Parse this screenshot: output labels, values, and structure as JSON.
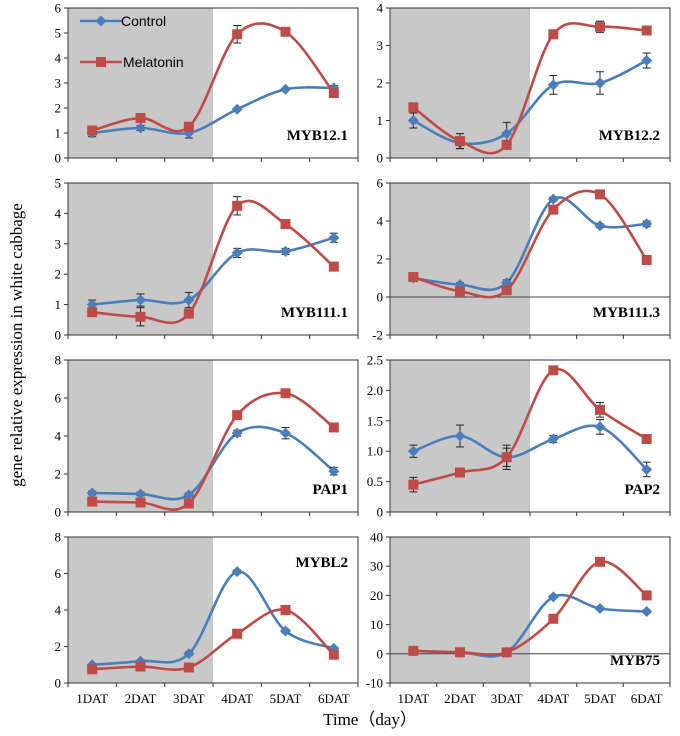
{
  "figure": {
    "ylabel": "gene relative expression in white cabbage",
    "xlabel": "Time（day）",
    "x_categories": [
      "1DAT",
      "2DAT",
      "3DAT",
      "4DAT",
      "5DAT",
      "6DAT"
    ],
    "shaded_region": "1DAT-3DAT",
    "colors": {
      "control": "#4a7ebb",
      "melatonin": "#be4b48",
      "shade": "#c8c8c8"
    }
  },
  "legend": {
    "control": "Control",
    "melatonin": "Melatonin"
  },
  "chart_data": [
    {
      "type": "line",
      "title": "MYB12.1",
      "ylim": [
        0,
        6
      ],
      "yticks": [
        "0",
        "1",
        "2",
        "3",
        "4",
        "5",
        "6"
      ],
      "categories": [
        "1DAT",
        "2DAT",
        "3DAT",
        "4DAT",
        "5DAT",
        "6DAT"
      ],
      "series": [
        {
          "name": "Control",
          "values": [
            1.0,
            1.2,
            1.0,
            1.95,
            2.75,
            2.8
          ],
          "errors": [
            0.15,
            0.1,
            0.2,
            0.05,
            0.05,
            0.1
          ]
        },
        {
          "name": "Melatonin",
          "values": [
            1.1,
            1.6,
            1.25,
            4.95,
            5.05,
            2.6
          ],
          "errors": [
            0.1,
            0.1,
            0.1,
            0.35,
            0.05,
            0.1
          ]
        }
      ]
    },
    {
      "type": "line",
      "title": "MYB12.2",
      "ylim": [
        0,
        4
      ],
      "yticks": [
        "0",
        "1",
        "2",
        "3",
        "4"
      ],
      "categories": [
        "1DAT",
        "2DAT",
        "3DAT",
        "4DAT",
        "5DAT",
        "6DAT"
      ],
      "series": [
        {
          "name": "Control",
          "values": [
            1.0,
            0.4,
            0.65,
            1.95,
            2.0,
            2.6
          ],
          "errors": [
            0.2,
            0.15,
            0.3,
            0.25,
            0.3,
            0.2
          ]
        },
        {
          "name": "Melatonin",
          "values": [
            1.35,
            0.45,
            0.35,
            3.3,
            3.5,
            3.4
          ],
          "errors": [
            0.05,
            0.2,
            0.05,
            0.05,
            0.15,
            0.05
          ]
        }
      ]
    },
    {
      "type": "line",
      "title": "MYB111.1",
      "ylim": [
        0,
        5
      ],
      "yticks": [
        "0",
        "1",
        "2",
        "3",
        "4",
        "5"
      ],
      "categories": [
        "1DAT",
        "2DAT",
        "3DAT",
        "4DAT",
        "5DAT",
        "6DAT"
      ],
      "series": [
        {
          "name": "Control",
          "values": [
            1.0,
            1.15,
            1.15,
            2.7,
            2.75,
            3.2
          ],
          "errors": [
            0.15,
            0.2,
            0.25,
            0.15,
            0.1,
            0.15
          ]
        },
        {
          "name": "Melatonin",
          "values": [
            0.75,
            0.6,
            0.7,
            4.25,
            3.65,
            2.25
          ],
          "errors": [
            0.1,
            0.3,
            0.1,
            0.3,
            0.05,
            0.05
          ]
        }
      ]
    },
    {
      "type": "line",
      "title": "MYB111.3",
      "ylim": [
        -2,
        6
      ],
      "yticks": [
        "-2",
        "0",
        "2",
        "4",
        "6"
      ],
      "categories": [
        "1DAT",
        "2DAT",
        "3DAT",
        "4DAT",
        "5DAT",
        "6DAT"
      ],
      "series": [
        {
          "name": "Control",
          "values": [
            1.0,
            0.65,
            0.75,
            5.15,
            3.75,
            3.85
          ],
          "errors": [
            0.1,
            0.1,
            0.15,
            0.1,
            0.1,
            0.15
          ]
        },
        {
          "name": "Melatonin",
          "values": [
            1.05,
            0.3,
            0.35,
            4.6,
            5.4,
            1.95
          ],
          "errors": [
            0.05,
            0.05,
            0.05,
            0.2,
            0.1,
            0.05
          ]
        }
      ]
    },
    {
      "type": "line",
      "title": "PAP1",
      "ylim": [
        0,
        8
      ],
      "yticks": [
        "0",
        "2",
        "4",
        "6",
        "8"
      ],
      "categories": [
        "1DAT",
        "2DAT",
        "3DAT",
        "4DAT",
        "5DAT",
        "6DAT"
      ],
      "series": [
        {
          "name": "Control",
          "values": [
            1.0,
            0.95,
            0.9,
            4.15,
            4.15,
            2.15
          ],
          "errors": [
            0.1,
            0.1,
            0.1,
            0.15,
            0.3,
            0.2
          ]
        },
        {
          "name": "Melatonin",
          "values": [
            0.55,
            0.5,
            0.45,
            5.1,
            6.25,
            4.45
          ],
          "errors": [
            0.05,
            0.05,
            0.05,
            0.1,
            0.1,
            0.1
          ]
        }
      ]
    },
    {
      "type": "line",
      "title": "PAP2",
      "ylim": [
        0,
        2.5
      ],
      "yticks": [
        "0",
        "0.5",
        "1.0",
        "1.5",
        "2.0",
        "2.5"
      ],
      "categories": [
        "1DAT",
        "2DAT",
        "3DAT",
        "4DAT",
        "5DAT",
        "6DAT"
      ],
      "series": [
        {
          "name": "Control",
          "values": [
            1.0,
            1.25,
            0.9,
            1.2,
            1.4,
            0.7
          ],
          "errors": [
            0.1,
            0.18,
            0.2,
            0.06,
            0.12,
            0.12
          ]
        },
        {
          "name": "Melatonin",
          "values": [
            0.45,
            0.65,
            0.9,
            2.33,
            1.68,
            1.2
          ],
          "errors": [
            0.12,
            0.06,
            0.15,
            0.03,
            0.12,
            0.05
          ]
        }
      ]
    },
    {
      "type": "line",
      "title": "MYBL2",
      "ylim": [
        0,
        8
      ],
      "yticks": [
        "0",
        "2",
        "4",
        "6",
        "8"
      ],
      "categories": [
        "1DAT",
        "2DAT",
        "3DAT",
        "4DAT",
        "5DAT",
        "6DAT"
      ],
      "series": [
        {
          "name": "Control",
          "values": [
            1.0,
            1.2,
            1.6,
            6.1,
            2.85,
            1.9
          ],
          "errors": [
            0.05,
            0.05,
            0.1,
            0.1,
            0.1,
            0.05
          ]
        },
        {
          "name": "Melatonin",
          "values": [
            0.75,
            0.9,
            0.85,
            2.7,
            4.0,
            1.55
          ],
          "errors": [
            0.05,
            0.05,
            0.05,
            0.1,
            0.1,
            0.05
          ]
        }
      ]
    },
    {
      "type": "line",
      "title": "MYB75",
      "ylim": [
        -10,
        40
      ],
      "yticks": [
        "-10",
        "0",
        "10",
        "20",
        "30",
        "40"
      ],
      "categories": [
        "1DAT",
        "2DAT",
        "3DAT",
        "4DAT",
        "5DAT",
        "6DAT"
      ],
      "series": [
        {
          "name": "Control",
          "values": [
            1.0,
            0.5,
            0.5,
            19.5,
            15.5,
            14.5
          ],
          "errors": [
            0.3,
            0.3,
            0.3,
            0.5,
            0.5,
            0.5
          ]
        },
        {
          "name": "Melatonin",
          "values": [
            1.0,
            0.5,
            0.5,
            12.0,
            31.5,
            20.0
          ],
          "errors": [
            0.3,
            0.3,
            0.3,
            0.5,
            0.5,
            0.5
          ]
        }
      ]
    }
  ]
}
